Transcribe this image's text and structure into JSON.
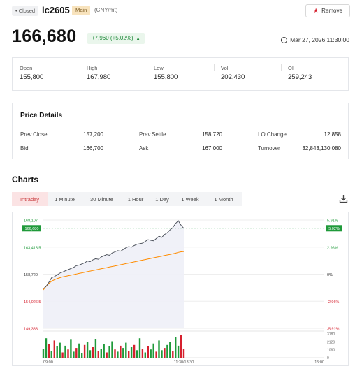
{
  "header": {
    "status_badge": "• Closed",
    "symbol": "lc2605",
    "main_badge": "Main",
    "unit": "(CNY/mt)",
    "remove_label": "Remove"
  },
  "quote": {
    "price": "166,680",
    "change": "+7,960 (+5.02%)",
    "datetime": "Mar 27, 2026 11:30:00"
  },
  "stats": [
    {
      "label": "Open",
      "value": "155,800"
    },
    {
      "label": "High",
      "value": "167,980"
    },
    {
      "label": "Low",
      "value": "155,800"
    },
    {
      "label": "Vol.",
      "value": "202,430"
    },
    {
      "label": "OI",
      "value": "259,243"
    }
  ],
  "price_details": {
    "title": "Price Details",
    "rows": [
      [
        {
          "label": "Prev.Close",
          "value": "157,200"
        },
        {
          "label": "Prev.Settle",
          "value": "158,720"
        },
        {
          "label": "I.O Change",
          "value": "12,858"
        }
      ],
      [
        {
          "label": "Bid",
          "value": "166,700"
        },
        {
          "label": "Ask",
          "value": "167,000"
        },
        {
          "label": "Turnover",
          "value": "32,843,130,080"
        }
      ]
    ]
  },
  "charts": {
    "title": "Charts",
    "tabs": [
      "Intraday",
      "1 Minute",
      "30 Minute",
      "1 Hour",
      "1 Day",
      "1 Week",
      "1 Month"
    ],
    "active_tab": 0,
    "colors": {
      "up": "#1f9a3a",
      "down": "#d6202e",
      "price_line": "#404650",
      "avg_line": "#ff8c00"
    }
  },
  "chart_data": {
    "type": "line",
    "left_ticks": [
      "168,107",
      "163,413.5",
      "158,720",
      "154,026.5",
      "149,333"
    ],
    "right_ticks": [
      "5.91%",
      "2.96%",
      "0%",
      "-2.96%",
      "-5.91%"
    ],
    "x_ticks": [
      "09:00",
      "11:30/13:30",
      "15:00"
    ],
    "volume_ticks": [
      "3180",
      "2120",
      "1060",
      "0"
    ],
    "current_price_label": "166,680",
    "current_pct_label": "5.02%",
    "ylim": [
      149333,
      168107
    ],
    "volume_max": 3180,
    "x_minutes": 240,
    "x_data_end_minute": 120,
    "price_series": [
      156200,
      156600,
      157300,
      158100,
      158300,
      158600,
      158900,
      159100,
      159300,
      159500,
      159700,
      159900,
      160200,
      160300,
      160500,
      160700,
      161000,
      160900,
      161200,
      161400,
      161300,
      161700,
      161900,
      162100,
      162000,
      162400,
      162600,
      162800,
      162700,
      163000,
      163300,
      163500,
      163400,
      163700,
      163900,
      164000,
      164100,
      164400,
      164700,
      164600,
      164500,
      164900,
      165300,
      165100,
      165600,
      165900,
      166400,
      166800,
      167500,
      167980,
      167200,
      166680
    ],
    "avg_series": [
      156000,
      156600,
      157100,
      157500,
      157750,
      157950,
      158100,
      158250,
      158350,
      158450,
      158550,
      158650,
      158750,
      158850,
      158950,
      159050,
      159150,
      159250,
      159350,
      159450,
      159550,
      159650,
      159750,
      159850,
      159950,
      160050,
      160150,
      160250,
      160350,
      160450,
      160550,
      160650,
      160750,
      160850,
      160950,
      161050,
      161150,
      161250,
      161350,
      161450,
      161550,
      161650,
      161750,
      161850,
      161950,
      162050,
      162150,
      162250,
      162350,
      162500,
      162600,
      162650
    ],
    "volume_series": [
      1200,
      2600,
      1800,
      900,
      2300,
      1500,
      2000,
      700,
      1600,
      1100,
      2400,
      800,
      1300,
      1900,
      600,
      1700,
      2100,
      1000,
      1400,
      2500,
      900,
      1200,
      1800,
      700,
      1500,
      2200,
      1100,
      800,
      1600,
      1300,
      2000,
      900,
      1400,
      1700,
      1000,
      2600,
      1200,
      700,
      1500,
      1100,
      1900,
      800,
      2300,
      1000,
      1300,
      1700,
      2100,
      900,
      2800,
      1600,
      3000,
      1200
    ],
    "volume_up": [
      1,
      1,
      0,
      1,
      0,
      1,
      1,
      0,
      1,
      0,
      1,
      1,
      0,
      1,
      1,
      0,
      1,
      1,
      0,
      1,
      0,
      1,
      1,
      0,
      1,
      1,
      0,
      1,
      0,
      1,
      1,
      0,
      1,
      0,
      1,
      1,
      0,
      1,
      0,
      1,
      1,
      0,
      1,
      1,
      0,
      1,
      1,
      0,
      1,
      1,
      0,
      0
    ]
  }
}
